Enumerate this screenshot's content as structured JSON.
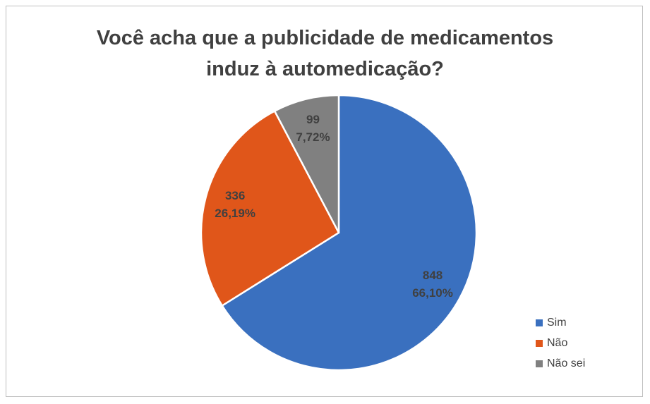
{
  "chart_data": {
    "type": "pie",
    "title": "Você acha que a publicidade de medicamentos\ninduz à automedicação?",
    "categories": [
      "Sim",
      "Não",
      "Não sei"
    ],
    "values": [
      848,
      336,
      99
    ],
    "percentages": [
      66.1,
      26.19,
      7.72
    ],
    "percentage_labels": [
      "66,10%",
      "26,19%",
      "7,72%"
    ],
    "colors": [
      "#3a70bf",
      "#e0561a",
      "#808080"
    ],
    "legend": "right"
  }
}
